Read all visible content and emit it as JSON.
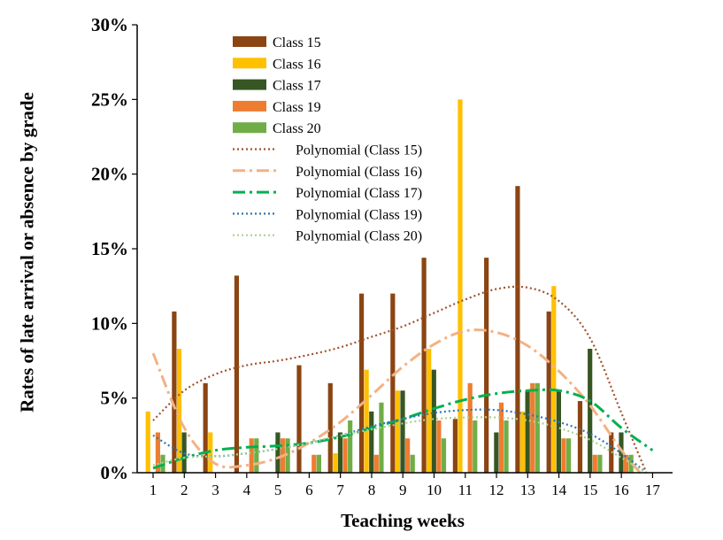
{
  "chart_data": {
    "type": "bar",
    "title": "",
    "xlabel": "Teaching weeks",
    "ylabel": "Rates of late arrival or absence by grade",
    "categories": [
      "1",
      "2",
      "3",
      "4",
      "5",
      "6",
      "7",
      "8",
      "9",
      "10",
      "11",
      "12",
      "13",
      "14",
      "15",
      "16",
      "17"
    ],
    "ylim": [
      0,
      0.3
    ],
    "yticks": [
      {
        "value": 0,
        "label": "0%"
      },
      {
        "value": 0.05,
        "label": "5%"
      },
      {
        "value": 0.1,
        "label": "10%"
      },
      {
        "value": 0.15,
        "label": "15%"
      },
      {
        "value": 0.2,
        "label": "20%"
      },
      {
        "value": 0.25,
        "label": "25%"
      },
      {
        "value": 0.3,
        "label": "30%"
      }
    ],
    "grid": false,
    "legend_position": "top-center",
    "series": [
      {
        "name": "Class 15",
        "color": "#8B4513",
        "values": [
          0,
          0.108,
          0.06,
          0.132,
          0,
          0.072,
          0.06,
          0.12,
          0.12,
          0.144,
          0.036,
          0.144,
          0.192,
          0.108,
          0.048,
          0.027,
          0
        ]
      },
      {
        "name": "Class 16",
        "color": "#FFC000",
        "values": [
          0.041,
          0.083,
          0.027,
          0,
          0,
          0,
          0.013,
          0.069,
          0.055,
          0.083,
          0.25,
          0,
          0.041,
          0.125,
          0,
          0,
          0
        ]
      },
      {
        "name": "Class 17",
        "color": "#375623",
        "values": [
          0,
          0.027,
          0,
          0,
          0.027,
          0,
          0.027,
          0.041,
          0.055,
          0.069,
          0,
          0.027,
          0.055,
          0.055,
          0.083,
          0.027,
          0
        ]
      },
      {
        "name": "Class 19",
        "color": "#ED7D31",
        "values": [
          0.027,
          0,
          0,
          0.023,
          0.023,
          0.012,
          0.023,
          0.012,
          0.023,
          0.035,
          0.06,
          0.047,
          0.06,
          0.023,
          0.012,
          0.012,
          0
        ]
      },
      {
        "name": "Class 20",
        "color": "#70AD47",
        "values": [
          0.012,
          0,
          0,
          0.023,
          0.023,
          0.012,
          0.035,
          0.047,
          0.012,
          0.023,
          0.035,
          0.035,
          0.06,
          0.023,
          0.012,
          0.012,
          0
        ]
      }
    ],
    "trendlines": [
      {
        "name": "Polynomial (Class 15)",
        "color": "#A0522D",
        "style": "dotted",
        "x": [
          1,
          2,
          3,
          4,
          5,
          6,
          7,
          8,
          9,
          10,
          11,
          12,
          13,
          14,
          15,
          16,
          16.8
        ],
        "y": [
          0.035,
          0.055,
          0.066,
          0.072,
          0.075,
          0.079,
          0.084,
          0.091,
          0.098,
          0.107,
          0.116,
          0.123,
          0.124,
          0.115,
          0.09,
          0.04,
          0.0
        ]
      },
      {
        "name": "Polynomial (Class 16)",
        "color": "#F4B183",
        "style": "dashdot",
        "x": [
          1,
          2,
          3,
          4,
          5,
          6,
          7,
          8,
          9,
          10,
          11,
          12,
          13,
          14,
          15,
          16,
          16.6
        ],
        "y": [
          0.08,
          0.03,
          0.006,
          0.005,
          0.01,
          0.02,
          0.034,
          0.052,
          0.071,
          0.086,
          0.095,
          0.094,
          0.085,
          0.068,
          0.045,
          0.015,
          0.0
        ]
      },
      {
        "name": "Polynomial (Class 17)",
        "color": "#00B050",
        "style": "dashdot",
        "x": [
          1,
          2,
          3,
          4,
          5,
          6,
          7,
          8,
          9,
          10,
          11,
          12,
          13,
          14,
          15,
          16,
          17
        ],
        "y": [
          0.003,
          0.01,
          0.015,
          0.017,
          0.018,
          0.02,
          0.024,
          0.03,
          0.036,
          0.043,
          0.049,
          0.053,
          0.055,
          0.055,
          0.048,
          0.03,
          0.015
        ]
      },
      {
        "name": "Polynomial (Class 19)",
        "color": "#2E75B6",
        "style": "dotted",
        "x": [
          1,
          2,
          3,
          4,
          5,
          6,
          7,
          8,
          9,
          10,
          11,
          12,
          13,
          14,
          15,
          16,
          16.8
        ],
        "y": [
          0.025,
          0.013,
          0.011,
          0.013,
          0.016,
          0.02,
          0.025,
          0.031,
          0.036,
          0.04,
          0.042,
          0.042,
          0.039,
          0.034,
          0.026,
          0.013,
          0.0
        ]
      },
      {
        "name": "Polynomial (Class 20)",
        "color": "#A9D18E",
        "style": "dotted",
        "x": [
          1,
          2,
          3,
          4,
          5,
          6,
          7,
          8,
          9,
          10,
          11,
          12,
          13,
          14,
          15,
          16,
          16.8
        ],
        "y": [
          0.005,
          0.01,
          0.011,
          0.013,
          0.016,
          0.02,
          0.025,
          0.029,
          0.033,
          0.036,
          0.037,
          0.037,
          0.035,
          0.03,
          0.022,
          0.01,
          0.0
        ]
      }
    ]
  }
}
